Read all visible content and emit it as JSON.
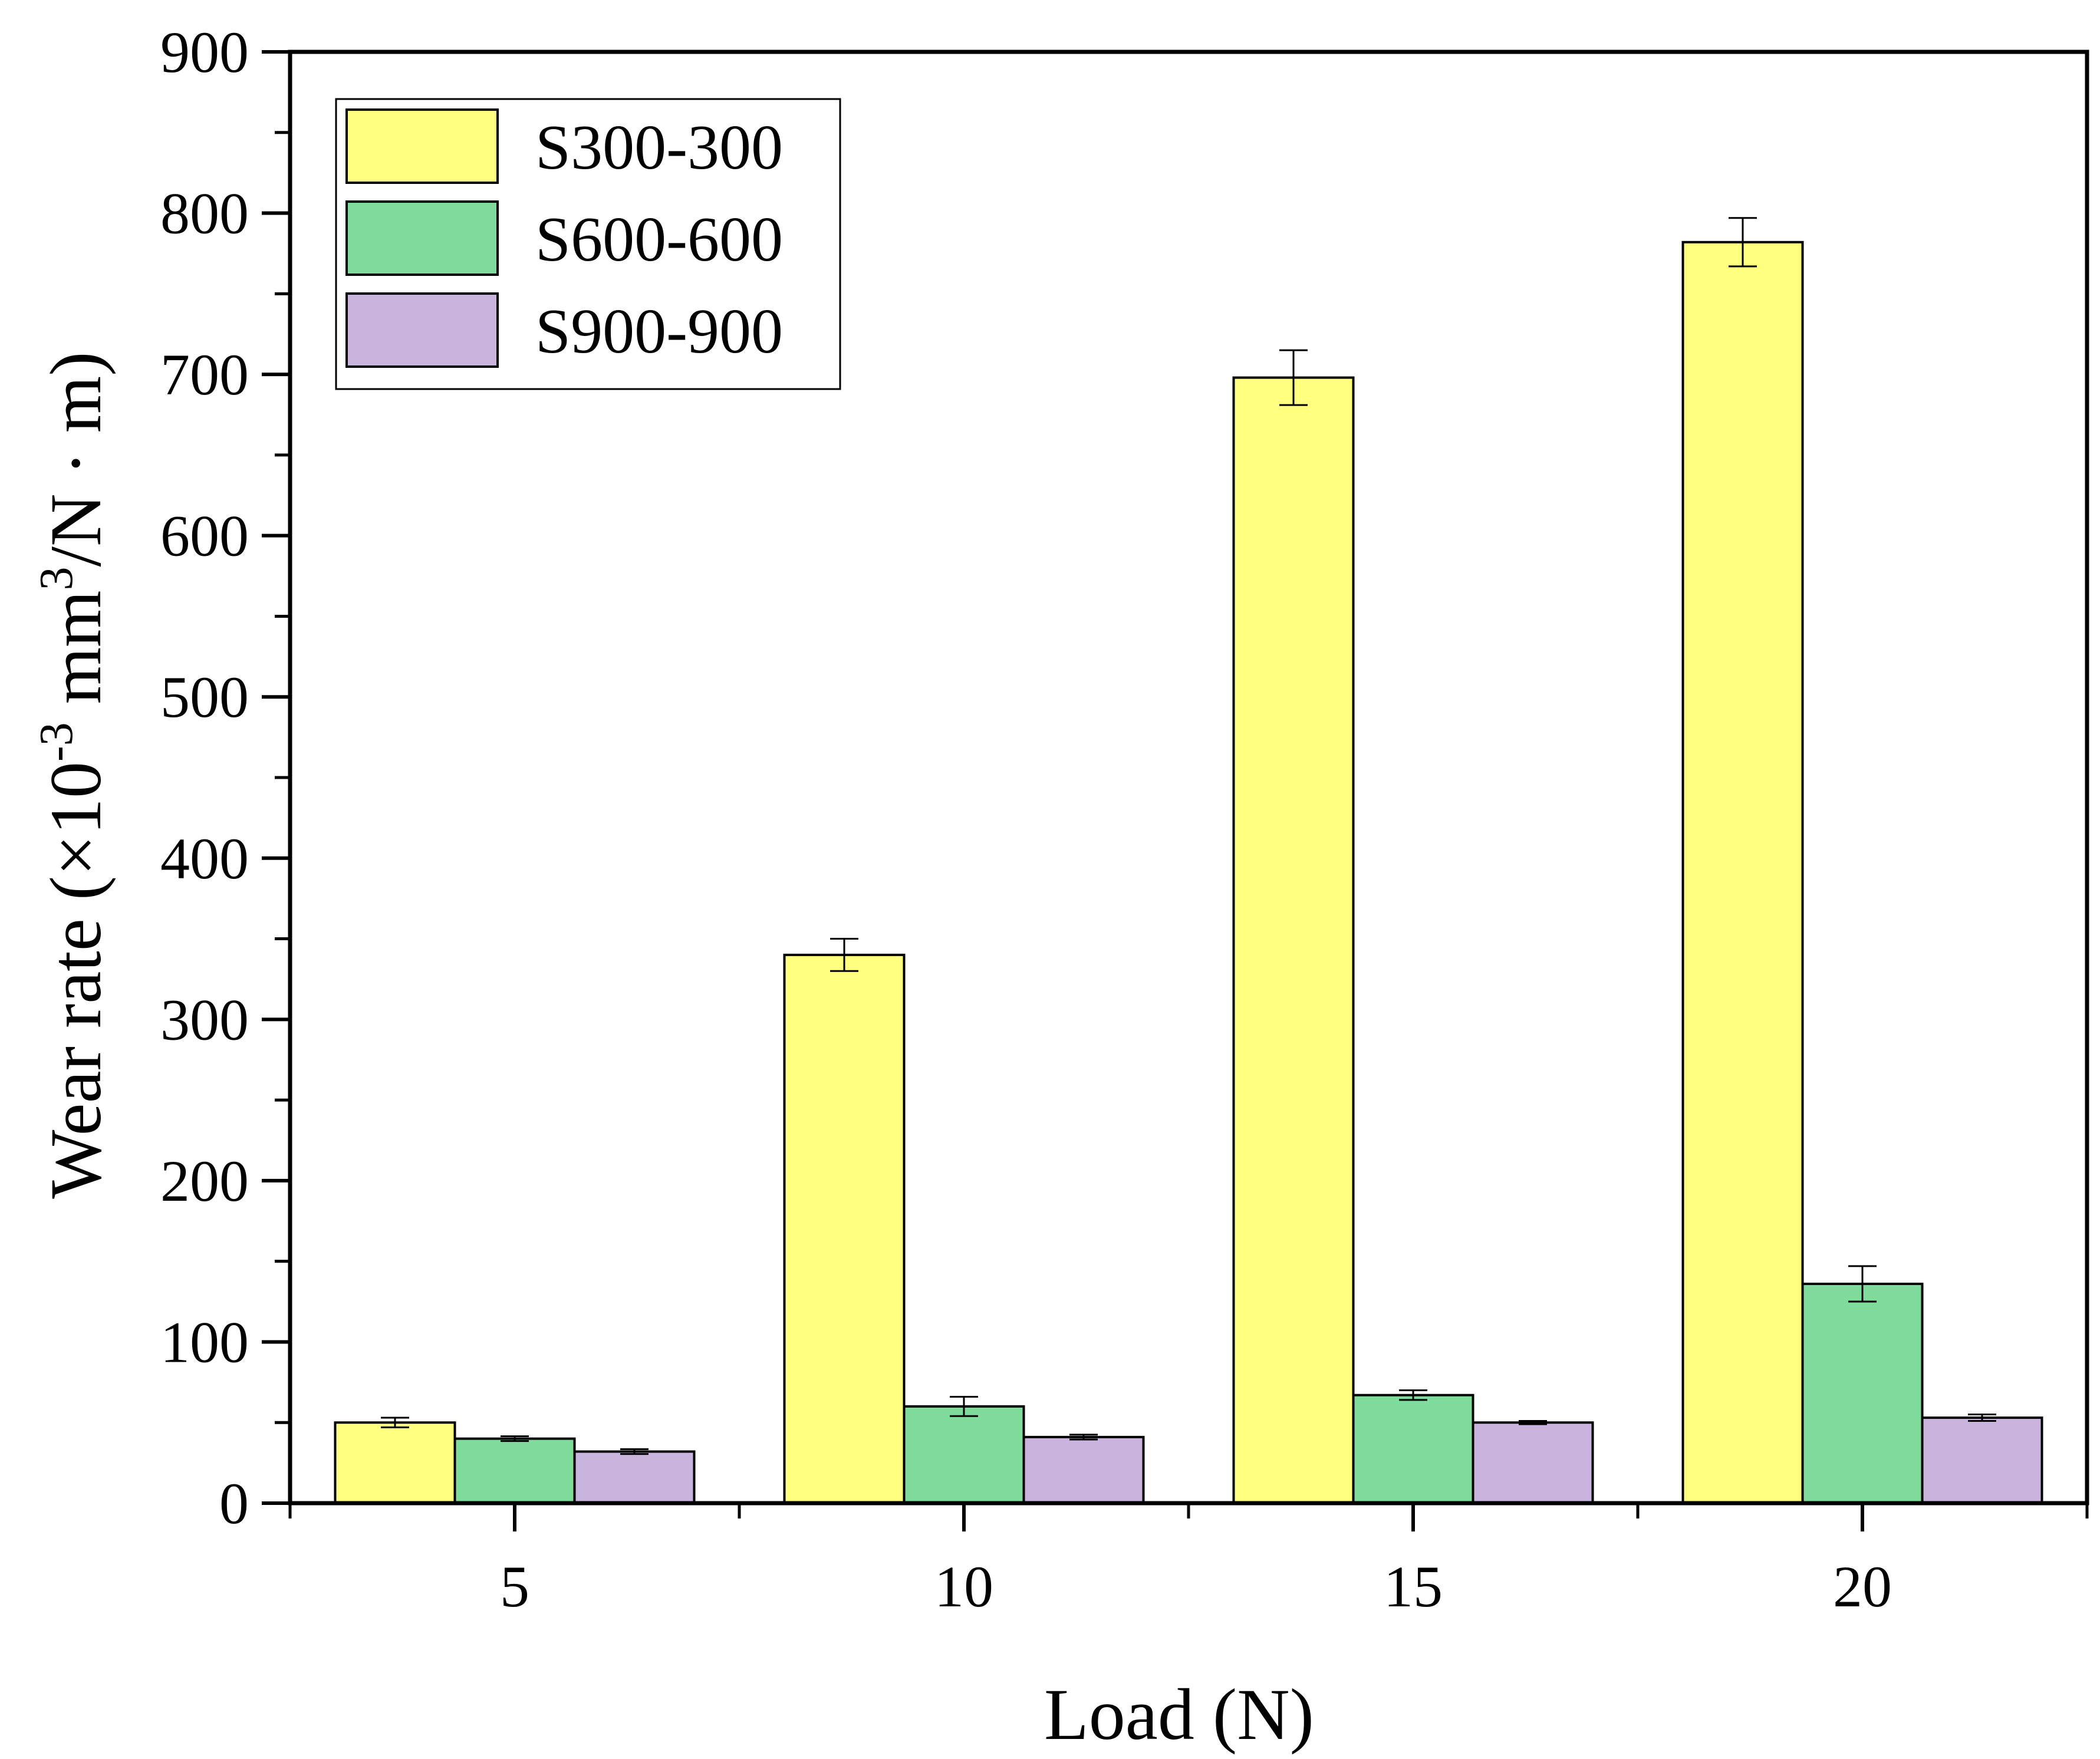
{
  "chart_data": {
    "type": "bar",
    "title": "",
    "xlabel": "Load (N)",
    "ylabel": "Wear rate (×10⁻³ mm³/N · m)",
    "ylabel_parts": {
      "prefix": "Wear rate (×10",
      "exp1": "-3",
      "middle": " mm",
      "exp2": "3",
      "suffix": "/N · m)"
    },
    "categories": [
      "5",
      "10",
      "15",
      "20"
    ],
    "ylim": [
      0,
      900
    ],
    "yticks": [
      "0",
      "100",
      "200",
      "300",
      "400",
      "500",
      "600",
      "700",
      "800",
      "900"
    ],
    "legend_position": "top-left",
    "series": [
      {
        "name": "S300-300",
        "color": "#ffff80",
        "values": [
          50,
          340,
          698,
          782
        ],
        "errors": [
          3,
          10,
          17,
          15
        ]
      },
      {
        "name": "S600-600",
        "color": "#80dc9c",
        "values": [
          40,
          60,
          67,
          136
        ],
        "errors": [
          1.5,
          6,
          3,
          11
        ]
      },
      {
        "name": "S900-900",
        "color": "#c8b4dc",
        "values": [
          32,
          41,
          50,
          53
        ],
        "errors": [
          1.5,
          1.5,
          1,
          2
        ]
      }
    ]
  }
}
